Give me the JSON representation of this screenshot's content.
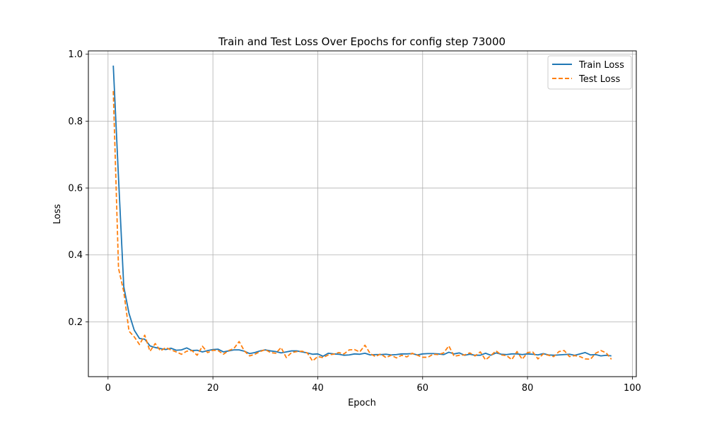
{
  "chart_data": {
    "type": "line",
    "title": "Train and Test Loss Over Epochs for config step 73000",
    "xlabel": "Epoch",
    "ylabel": "Loss",
    "xlim": [
      -3.75,
      100.75
    ],
    "ylim": [
      0.036,
      1.01
    ],
    "xticks": [
      0,
      20,
      40,
      60,
      80,
      100
    ],
    "yticks": [
      0.2,
      0.4,
      0.6,
      0.8,
      1.0
    ],
    "xtick_labels": [
      "0",
      "20",
      "40",
      "60",
      "80",
      "100"
    ],
    "ytick_labels": [
      "0.2",
      "0.4",
      "0.6",
      "0.8",
      "1.0"
    ],
    "grid": true,
    "legend_position": "top-right",
    "series": [
      {
        "name": "Train Loss",
        "color": "#1f77b4",
        "style": "solid",
        "x": [
          1,
          2,
          3,
          4,
          5,
          6,
          7,
          8,
          9,
          10,
          11,
          12,
          13,
          14,
          15,
          16,
          17,
          18,
          19,
          20,
          21,
          22,
          23,
          24,
          25,
          26,
          27,
          28,
          29,
          30,
          31,
          32,
          33,
          34,
          35,
          36,
          37,
          38,
          39,
          40,
          41,
          42,
          43,
          44,
          45,
          46,
          47,
          48,
          49,
          50,
          51,
          52,
          53,
          54,
          55,
          56,
          57,
          58,
          59,
          60,
          61,
          62,
          63,
          64,
          65,
          66,
          67,
          68,
          69,
          70,
          71,
          72,
          73,
          74,
          75,
          76,
          77,
          78,
          79,
          80,
          81,
          82,
          83,
          84,
          85,
          86,
          87,
          88,
          89,
          90,
          91,
          92,
          93,
          94,
          95,
          96
        ],
        "values": [
          0.966,
          0.63,
          0.305,
          0.225,
          0.175,
          0.15,
          0.148,
          0.128,
          0.123,
          0.12,
          0.117,
          0.121,
          0.115,
          0.116,
          0.122,
          0.114,
          0.115,
          0.11,
          0.114,
          0.117,
          0.118,
          0.11,
          0.113,
          0.116,
          0.116,
          0.112,
          0.105,
          0.108,
          0.113,
          0.116,
          0.113,
          0.111,
          0.107,
          0.11,
          0.113,
          0.113,
          0.11,
          0.107,
          0.103,
          0.104,
          0.097,
          0.106,
          0.104,
          0.103,
          0.1,
          0.101,
          0.104,
          0.103,
          0.106,
          0.101,
          0.102,
          0.102,
          0.103,
          0.101,
          0.102,
          0.104,
          0.104,
          0.105,
          0.101,
          0.104,
          0.105,
          0.105,
          0.104,
          0.102,
          0.109,
          0.104,
          0.107,
          0.1,
          0.103,
          0.1,
          0.1,
          0.106,
          0.1,
          0.107,
          0.103,
          0.102,
          0.104,
          0.104,
          0.102,
          0.104,
          0.103,
          0.101,
          0.105,
          0.101,
          0.1,
          0.101,
          0.102,
          0.103,
          0.1,
          0.104,
          0.108,
          0.101,
          0.102,
          0.098,
          0.1,
          0.098
        ]
      },
      {
        "name": "Test Loss",
        "color": "#ff7f0e",
        "style": "dashed",
        "x": [
          1,
          2,
          3,
          4,
          5,
          6,
          7,
          8,
          9,
          10,
          11,
          12,
          13,
          14,
          15,
          16,
          17,
          18,
          19,
          20,
          21,
          22,
          23,
          24,
          25,
          26,
          27,
          28,
          29,
          30,
          31,
          32,
          33,
          34,
          35,
          36,
          37,
          38,
          39,
          40,
          41,
          42,
          43,
          44,
          45,
          46,
          47,
          48,
          49,
          50,
          51,
          52,
          53,
          54,
          55,
          56,
          57,
          58,
          59,
          60,
          61,
          62,
          63,
          64,
          65,
          66,
          67,
          68,
          69,
          70,
          71,
          72,
          73,
          74,
          75,
          76,
          77,
          78,
          79,
          80,
          81,
          82,
          83,
          84,
          85,
          86,
          87,
          88,
          89,
          90,
          91,
          92,
          93,
          94,
          95,
          96
        ],
        "values": [
          0.89,
          0.36,
          0.29,
          0.172,
          0.155,
          0.132,
          0.16,
          0.112,
          0.135,
          0.113,
          0.123,
          0.116,
          0.11,
          0.103,
          0.112,
          0.114,
          0.1,
          0.127,
          0.108,
          0.115,
          0.114,
          0.103,
          0.114,
          0.12,
          0.141,
          0.113,
          0.098,
          0.103,
          0.111,
          0.117,
          0.108,
          0.106,
          0.123,
          0.093,
          0.108,
          0.111,
          0.112,
          0.107,
          0.083,
          0.096,
          0.093,
          0.101,
          0.103,
          0.108,
          0.104,
          0.116,
          0.117,
          0.11,
          0.13,
          0.105,
          0.096,
          0.104,
          0.093,
          0.1,
          0.092,
          0.1,
          0.095,
          0.106,
          0.1,
          0.094,
          0.094,
          0.103,
          0.102,
          0.107,
          0.128,
          0.097,
          0.1,
          0.101,
          0.107,
          0.098,
          0.11,
          0.086,
          0.099,
          0.113,
          0.101,
          0.099,
          0.087,
          0.111,
          0.088,
          0.108,
          0.11,
          0.089,
          0.104,
          0.1,
          0.096,
          0.111,
          0.114,
          0.096,
          0.099,
          0.096,
          0.089,
          0.088,
          0.106,
          0.114,
          0.107,
          0.088
        ]
      }
    ]
  }
}
